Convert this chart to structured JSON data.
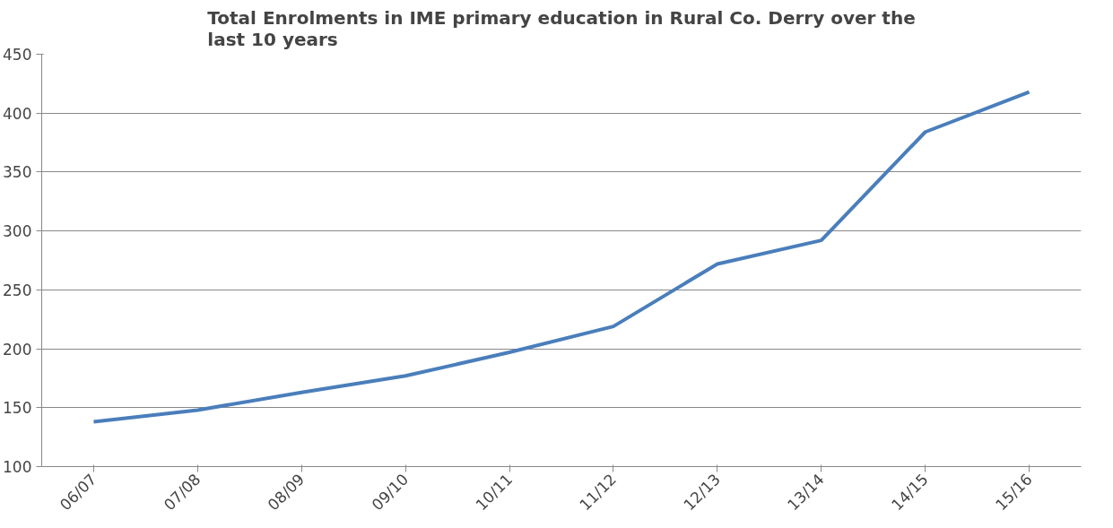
{
  "chart_data": {
    "type": "line",
    "title": "Total Enrolments in IME primary education in Rural Co. Derry over the last 10 years",
    "categories": [
      "06/07",
      "07/08",
      "08/09",
      "09/10",
      "10/11",
      "11/12",
      "12/13",
      "13/14",
      "14/15",
      "15/16"
    ],
    "series": [
      {
        "color": "#4a7ebb",
        "values": [
          138,
          148,
          163,
          177,
          197,
          219,
          272,
          292,
          384,
          418
        ]
      }
    ],
    "ylim": [
      100,
      450
    ],
    "yticks": [
      100,
      150,
      200,
      250,
      300,
      350,
      400,
      450
    ],
    "grid": "y",
    "marker": "none",
    "line_style": "solid"
  }
}
